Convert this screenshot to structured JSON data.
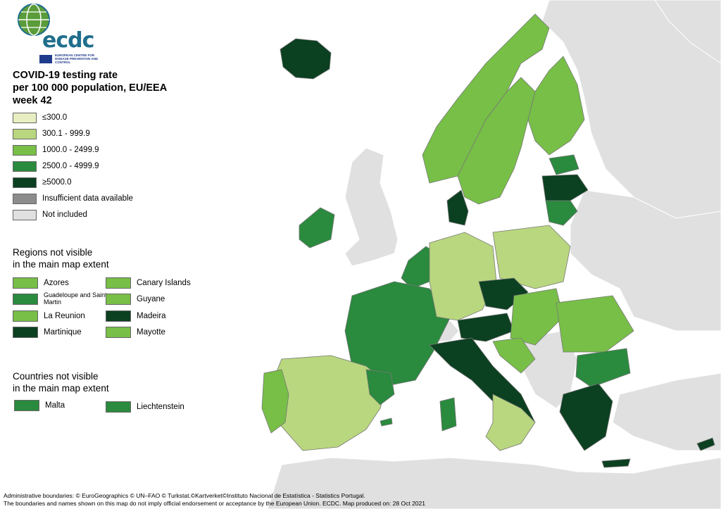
{
  "logo": {
    "text": "ecdc",
    "subtitle": "EUROPEAN CENTRE FOR DISEASE PREVENTION AND CONTROL"
  },
  "title": {
    "line1": "COVID-19 testing rate",
    "line2": "per 100 000 population, EU/EEA",
    "line3": "week 42"
  },
  "colors": {
    "c1": "#e8eec1",
    "c2": "#b9d77e",
    "c3": "#77bf47",
    "c4": "#2a8a3e",
    "c5": "#0b4021",
    "insufficient": "#8c8c8c",
    "not_included": "#e0e0e0",
    "border": "#777777",
    "sea": "#ffffff"
  },
  "legend": [
    {
      "label": "≤300.0",
      "color": "#e8eec1"
    },
    {
      "label": "300.1 - 999.9",
      "color": "#b9d77e"
    },
    {
      "label": "1000.0 - 2499.9",
      "color": "#77bf47"
    },
    {
      "label": "2500.0 - 4999.9",
      "color": "#2a8a3e"
    },
    {
      "label": "≥5000.0",
      "color": "#0b4021"
    },
    {
      "label": "Insufficient data available",
      "color": "#8c8c8c"
    },
    {
      "label": "Not included",
      "color": "#e0e0e0"
    }
  ],
  "regions": {
    "title_line1": "Regions not visible",
    "title_line2": "in the main map extent",
    "items": [
      {
        "label": "Azores",
        "color": "#77bf47"
      },
      {
        "label": "Canary Islands",
        "color": "#77bf47"
      },
      {
        "label": "Guadeloupe and Saint Martin",
        "color": "#2a8a3e"
      },
      {
        "label": "Guyane",
        "color": "#77bf47"
      },
      {
        "label": "La Reunion",
        "color": "#77bf47"
      },
      {
        "label": "Madeira",
        "color": "#0b4021"
      },
      {
        "label": "Martinique",
        "color": "#0b4021"
      },
      {
        "label": "Mayotte",
        "color": "#77bf47"
      }
    ]
  },
  "countries": {
    "title_line1": "Countries not visible",
    "title_line2": "in the main map extent",
    "items": [
      {
        "label": "Malta",
        "color": "#2a8a3e"
      },
      {
        "label": "Liechtenstein",
        "color": "#2a8a3e"
      }
    ]
  },
  "footer": {
    "line1": "Administrative boundaries: © EuroGeographics © UN–FAO © Turkstat.©Kartverket©Instituto Nacional de Estatística - Statistics Portugal.",
    "line2": "The boundaries and names shown on this map do not imply official endorsement or acceptance by the European Union. ECDC. Map produced on: 28 Oct 2021"
  }
}
